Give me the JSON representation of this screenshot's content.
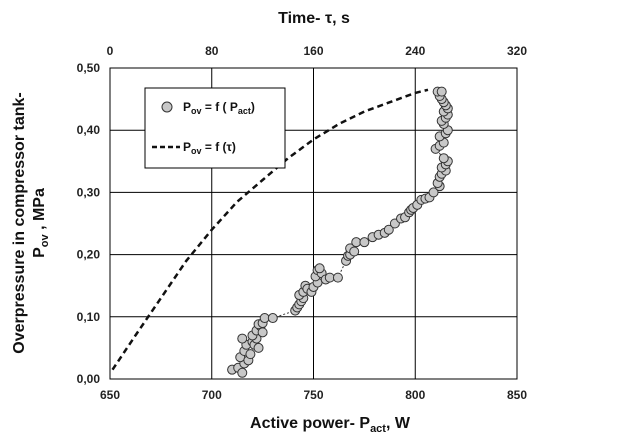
{
  "chart_data": {
    "type": "scatter",
    "x_bottom": {
      "label": "Active power- P",
      "label_sub": "act",
      "label_unit": ", W",
      "range": [
        650,
        850
      ],
      "ticks": [
        "650",
        "700",
        "750",
        "800",
        "850"
      ]
    },
    "x_top": {
      "label": "Time- τ, s",
      "range": [
        0,
        320
      ],
      "ticks": [
        "0",
        "80",
        "160",
        "240",
        "320"
      ]
    },
    "y": {
      "label_line1": "Overpressure in compressor tank-",
      "label_line2_main": "P",
      "label_line2_sub": "ov",
      "label_line2_unit": " , MPa",
      "range": [
        0,
        0.5
      ],
      "ticks": [
        "0,00",
        "0,10",
        "0,20",
        "0,30",
        "0,40",
        "0,50"
      ]
    },
    "grid": true,
    "legend_position": "top-left",
    "series": [
      {
        "name_main": "P",
        "name_sub": "ov",
        "name_mid": " = f ( P",
        "name_sub2": "act",
        "name_end": ")",
        "axis": "bottom",
        "style": "markers-with-dotted-line",
        "marker_color": "#c8c8c8",
        "points": [
          [
            710,
            0.015
          ],
          [
            713,
            0.018
          ],
          [
            715,
            0.01
          ],
          [
            716,
            0.025
          ],
          [
            714,
            0.035
          ],
          [
            716,
            0.045
          ],
          [
            718,
            0.03
          ],
          [
            717,
            0.055
          ],
          [
            719,
            0.04
          ],
          [
            720,
            0.06
          ],
          [
            715,
            0.065
          ],
          [
            721,
            0.055
          ],
          [
            722,
            0.065
          ],
          [
            720,
            0.07
          ],
          [
            722,
            0.078
          ],
          [
            723,
            0.05
          ],
          [
            724,
            0.085
          ],
          [
            725,
            0.075
          ],
          [
            723,
            0.088
          ],
          [
            725,
            0.09
          ],
          [
            726,
            0.098
          ],
          [
            730,
            0.098
          ],
          [
            741,
            0.11
          ],
          [
            742,
            0.115
          ],
          [
            743,
            0.12
          ],
          [
            744,
            0.125
          ],
          [
            745,
            0.13
          ],
          [
            743,
            0.135
          ],
          [
            745,
            0.14
          ],
          [
            746,
            0.15
          ],
          [
            747,
            0.145
          ],
          [
            749,
            0.14
          ],
          [
            750,
            0.148
          ],
          [
            752,
            0.155
          ],
          [
            751,
            0.165
          ],
          [
            752,
            0.175
          ],
          [
            754,
            0.17
          ],
          [
            753,
            0.178
          ],
          [
            756,
            0.16
          ],
          [
            758,
            0.163
          ],
          [
            762,
            0.163
          ],
          [
            766,
            0.19
          ],
          [
            767,
            0.198
          ],
          [
            768,
            0.2
          ],
          [
            768,
            0.21
          ],
          [
            770,
            0.205
          ],
          [
            771,
            0.22
          ],
          [
            775,
            0.22
          ],
          [
            779,
            0.228
          ],
          [
            782,
            0.232
          ],
          [
            785,
            0.235
          ],
          [
            787,
            0.24
          ],
          [
            790,
            0.25
          ],
          [
            793,
            0.258
          ],
          [
            795,
            0.26
          ],
          [
            797,
            0.268
          ],
          [
            798,
            0.272
          ],
          [
            799,
            0.275
          ],
          [
            801,
            0.28
          ],
          [
            803,
            0.288
          ],
          [
            805,
            0.29
          ],
          [
            807,
            0.292
          ],
          [
            809,
            0.3
          ],
          [
            812,
            0.31
          ],
          [
            811,
            0.315
          ],
          [
            812,
            0.325
          ],
          [
            813,
            0.33
          ],
          [
            815,
            0.335
          ],
          [
            813,
            0.34
          ],
          [
            815,
            0.345
          ],
          [
            816,
            0.35
          ],
          [
            814,
            0.355
          ],
          [
            810,
            0.37
          ],
          [
            812,
            0.375
          ],
          [
            814,
            0.38
          ],
          [
            812,
            0.39
          ],
          [
            815,
            0.395
          ],
          [
            816,
            0.4
          ],
          [
            814,
            0.41
          ],
          [
            813,
            0.415
          ],
          [
            815,
            0.42
          ],
          [
            816,
            0.425
          ],
          [
            814,
            0.43
          ],
          [
            816,
            0.435
          ],
          [
            815,
            0.44
          ],
          [
            814,
            0.445
          ],
          [
            813,
            0.45
          ],
          [
            812,
            0.455
          ],
          [
            811,
            0.462
          ],
          [
            813,
            0.462
          ]
        ]
      },
      {
        "name_main": "P",
        "name_sub": "ov",
        "name_end": " = f (τ)",
        "axis": "top",
        "style": "dashed-line",
        "points": [
          [
            2,
            0.015
          ],
          [
            20,
            0.07
          ],
          [
            40,
            0.13
          ],
          [
            60,
            0.19
          ],
          [
            80,
            0.24
          ],
          [
            100,
            0.285
          ],
          [
            120,
            0.32
          ],
          [
            140,
            0.355
          ],
          [
            160,
            0.385
          ],
          [
            180,
            0.41
          ],
          [
            200,
            0.43
          ],
          [
            220,
            0.445
          ],
          [
            240,
            0.46
          ],
          [
            250,
            0.465
          ]
        ]
      }
    ]
  }
}
